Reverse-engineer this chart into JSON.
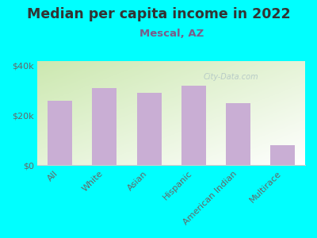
{
  "title": "Median per capita income in 2022",
  "subtitle": "Mescal, AZ",
  "categories": [
    "All",
    "White",
    "Asian",
    "Hispanic",
    "American Indian",
    "Multirace"
  ],
  "values": [
    26000,
    31000,
    29000,
    32000,
    25000,
    8000
  ],
  "bar_color": "#c9aed4",
  "background_color": "#00FFFF",
  "title_color": "#333333",
  "subtitle_color": "#7a5c8a",
  "tick_color": "#666666",
  "ylim": [
    0,
    42000
  ],
  "yticks": [
    0,
    20000,
    40000
  ],
  "ytick_labels": [
    "$0",
    "$20k",
    "$40k"
  ],
  "watermark": "City-Data.com",
  "title_fontsize": 12.5,
  "subtitle_fontsize": 9.5,
  "tick_fontsize": 8
}
